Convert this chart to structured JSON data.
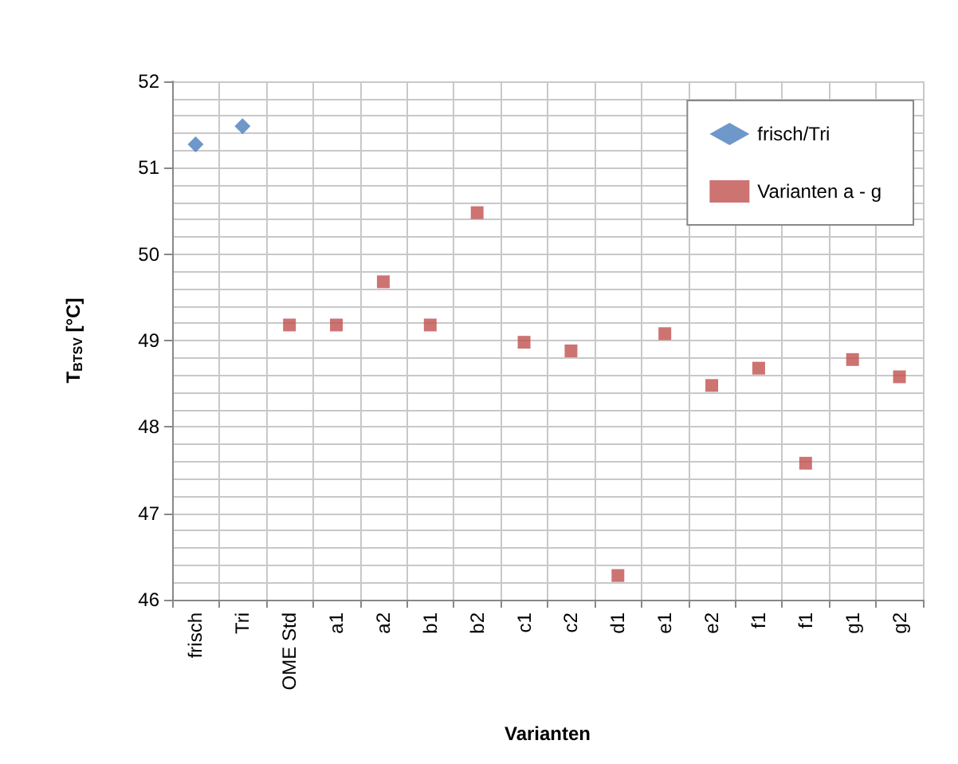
{
  "chart_data": {
    "type": "scatter",
    "xlabel": "Varianten",
    "ylabel": "T$_{BTSV}$ [°C]",
    "categories": [
      "frisch",
      "Tri",
      "OME Std",
      "a1",
      "a2",
      "b1",
      "b2",
      "c1",
      "c2",
      "d1",
      "e1",
      "e2",
      "f1",
      "f1",
      "g1",
      "g2"
    ],
    "series": [
      {
        "name": "frisch/Tri",
        "color": "#4a7ebb",
        "marker": "diamond",
        "values": [
          51.27,
          51.48,
          null,
          null,
          null,
          null,
          null,
          null,
          null,
          null,
          null,
          null,
          null,
          null,
          null,
          null
        ]
      },
      {
        "name": "Varianten a - g",
        "color": "#c0504d",
        "marker": "square",
        "values": [
          null,
          null,
          49.18,
          49.18,
          49.68,
          49.18,
          50.48,
          48.98,
          48.88,
          46.28,
          49.08,
          48.48,
          48.68,
          47.58,
          48.78,
          48.58
        ]
      }
    ],
    "ylim": [
      46,
      52
    ],
    "yticks": [
      46,
      {
        "value": 46.2,
        "label": null
      },
      {
        "value": 46.4,
        "label": null
      },
      {
        "value": 46.6,
        "label": null
      },
      {
        "value": 46.8,
        "label": null
      },
      47,
      {
        "value": 47.2,
        "label": null
      },
      {
        "value": 47.4,
        "label": null
      },
      {
        "value": 47.6,
        "label": null
      },
      {
        "value": 47.8,
        "label": null
      },
      48,
      {
        "value": 48.2,
        "label": null
      },
      {
        "value": 48.4,
        "label": null
      },
      {
        "value": 48.6,
        "label": null
      },
      {
        "value": 48.8,
        "label": null
      },
      49,
      {
        "value": 49.2,
        "label": null
      },
      {
        "value": 49.4,
        "label": null
      },
      {
        "value": 49.6,
        "label": null
      },
      {
        "value": 49.8,
        "label": null
      },
      50,
      {
        "value": 50.2,
        "label": null
      },
      {
        "value": 50.4,
        "label": null
      },
      {
        "value": 50.6,
        "label": null
      },
      {
        "value": 50.8,
        "label": null
      },
      51,
      {
        "value": 51.2,
        "label": null
      },
      {
        "value": 51.4,
        "label": null
      },
      {
        "value": 51.6,
        "label": null
      },
      {
        "value": 51.8,
        "label": null
      },
      52
    ],
    "grid": true,
    "legend": "top right"
  }
}
